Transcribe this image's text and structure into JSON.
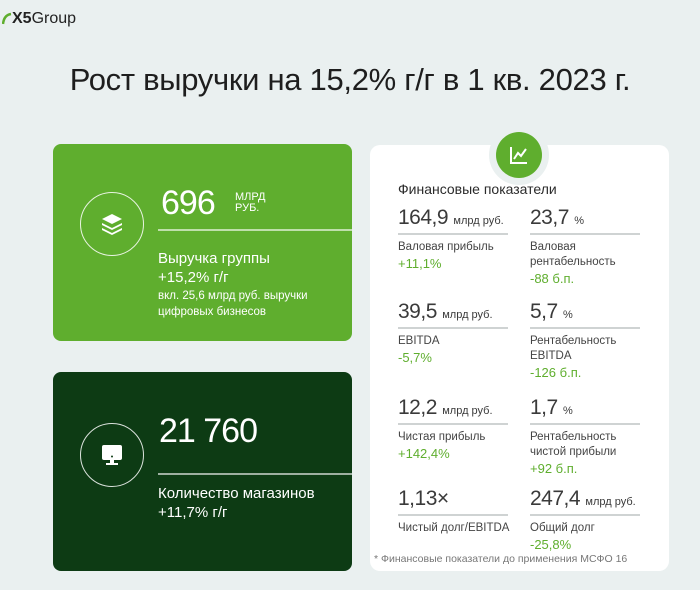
{
  "logo": {
    "text_bold": "X5",
    "text": "Group"
  },
  "title": "Рост выручки на 15,2% г/г в 1 кв. 2023 г.",
  "colors": {
    "accent": "#5fae2e",
    "dark": "#0d3b14",
    "background": "#eaf0f0"
  },
  "revenue_card": {
    "icon": "layers-icon",
    "value": "696",
    "unit_line1": "МЛРД",
    "unit_line2": "РУБ.",
    "label": "Выручка группы",
    "change": "+15,2% г/г",
    "note_line1": "вкл. 25,6 млрд руб. выручки",
    "note_line2": "цифровых бизнесов"
  },
  "stores_card": {
    "icon": "monitor-icon",
    "value": "21 760",
    "label": "Количество магазинов",
    "change": "+11,7% г/г"
  },
  "financials": {
    "icon": "chart-line-icon",
    "title": "Финансовые показатели",
    "metrics": [
      {
        "value": "164,9",
        "unit": "млрд руб.",
        "label": "Валовая прибыль",
        "change": "+11,1%"
      },
      {
        "value": "23,7",
        "unit": "%",
        "label": "Валовая рентабельность",
        "change": "-88 б.п."
      },
      {
        "value": "39,5",
        "unit": "млрд руб.",
        "label": "EBITDA",
        "change": "-5,7%"
      },
      {
        "value": "5,7",
        "unit": "%",
        "label": "Рентабельность EBITDA",
        "change": "-126 б.п."
      },
      {
        "value": "12,2",
        "unit": "млрд руб.",
        "label": "Чистая прибыль",
        "change": "+142,4%"
      },
      {
        "value": "1,7",
        "unit": "%",
        "label": "Рентабельность чистой прибыли",
        "change": "+92 б.п."
      },
      {
        "value": "1,13×",
        "unit": "",
        "label": "Чистый долг/EBITDA",
        "change": ""
      },
      {
        "value": "247,4",
        "unit": "млрд руб.",
        "label": "Общий долг",
        "change": "-25,8%"
      }
    ],
    "footnote": "*  Финансовые показатели до применения МСФО 16"
  }
}
